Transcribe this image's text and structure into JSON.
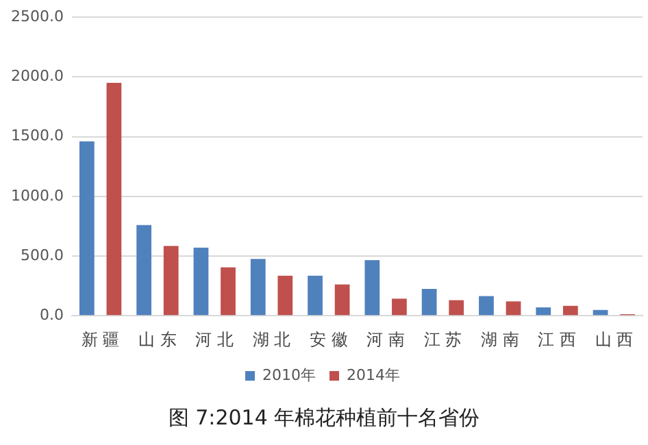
{
  "chart_data": {
    "type": "bar",
    "categories": [
      "新 疆",
      "山 东",
      "河 北",
      "湖 北",
      "安 徽",
      "河 南",
      "江 苏",
      "湖 南",
      "江 西",
      "山 西"
    ],
    "series": [
      {
        "name": "2010年",
        "color": "#4f81bd",
        "values": [
          1460,
          760,
          570,
          475,
          335,
          465,
          225,
          165,
          70,
          48
        ]
      },
      {
        "name": "2014年",
        "color": "#c0504d",
        "values": [
          1950,
          585,
          405,
          335,
          262,
          143,
          130,
          120,
          83,
          12
        ]
      }
    ],
    "ylim": [
      0,
      2500
    ],
    "yticks": [
      {
        "value": 0,
        "label": "0.0"
      },
      {
        "value": 500,
        "label": "500.0"
      },
      {
        "value": 1000,
        "label": "1000.0"
      },
      {
        "value": 1500,
        "label": "1500.0"
      },
      {
        "value": 2000,
        "label": "2000.0"
      },
      {
        "value": 2500,
        "label": "2500.0"
      }
    ],
    "grid": "y",
    "legend": "bottom",
    "annotations": [
      "图 7:2014 年棉花种植前十名省份"
    ]
  }
}
